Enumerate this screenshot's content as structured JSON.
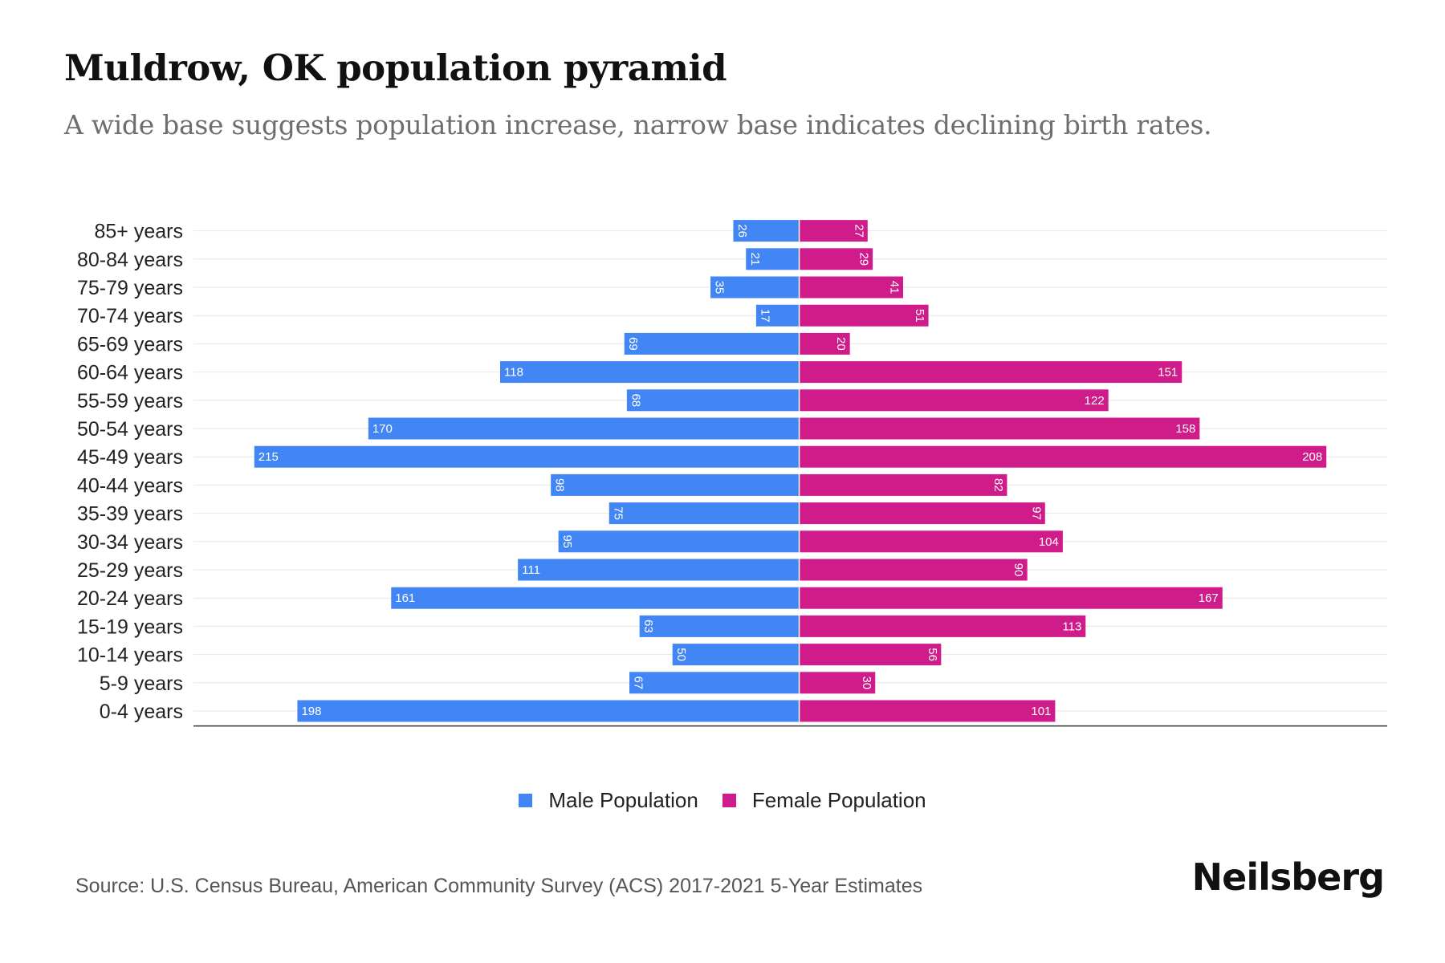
{
  "title": "Muldrow, OK population pyramid",
  "subtitle": "A wide base suggests population increase, narrow base indicates declining birth rates.",
  "source": "Source: U.S. Census Bureau, American Community Survey (ACS) 2017-2021 5-Year Estimates",
  "brand": "Neilsberg",
  "colors": {
    "male": "#4285f4",
    "female": "#d01c8b",
    "grid": "#e6e6e6",
    "axis": "#333333"
  },
  "legend": {
    "male_label": "Male Population",
    "female_label": "Female Population"
  },
  "chart_data": {
    "type": "bar",
    "orientation": "horizontal-pyramid",
    "title": "Muldrow, OK population pyramid",
    "categories": [
      "85+ years",
      "80-84 years",
      "75-79 years",
      "70-74 years",
      "65-69 years",
      "60-64 years",
      "55-59 years",
      "50-54 years",
      "45-49 years",
      "40-44 years",
      "35-39 years",
      "30-34 years",
      "25-29 years",
      "20-24 years",
      "15-19 years",
      "10-14 years",
      "5-9 years",
      "0-4 years"
    ],
    "series": [
      {
        "name": "Male Population",
        "values": [
          26,
          21,
          35,
          17,
          69,
          118,
          68,
          170,
          215,
          98,
          75,
          95,
          111,
          161,
          63,
          50,
          67,
          198
        ]
      },
      {
        "name": "Female Population",
        "values": [
          27,
          29,
          41,
          51,
          20,
          151,
          122,
          158,
          208,
          82,
          97,
          104,
          90,
          167,
          113,
          56,
          30,
          101
        ]
      }
    ],
    "xlim": [
      -239,
      232
    ],
    "legend_position": "bottom-center"
  }
}
